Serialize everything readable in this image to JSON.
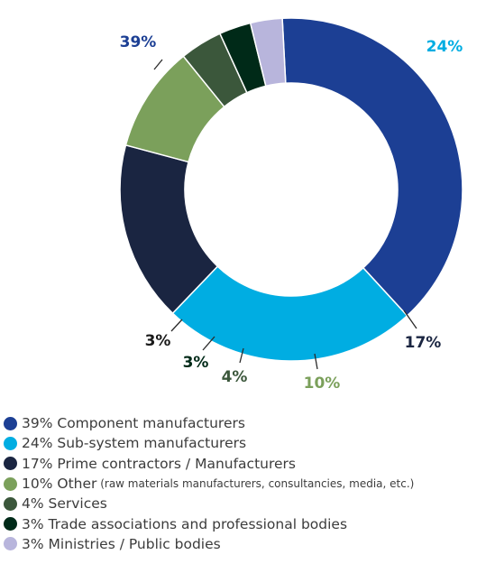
{
  "chart_data": {
    "type": "pie",
    "title": "",
    "slices": [
      {
        "value": 39,
        "label": "39%",
        "color": "#1c3f94",
        "legend": "39% Component manufacturers",
        "note": ""
      },
      {
        "value": 24,
        "label": "24%",
        "color": "#00ade2",
        "legend": "24% Sub-system manufacturers",
        "note": ""
      },
      {
        "value": 17,
        "label": "17%",
        "color": "#1a2541",
        "legend": "17% Prime contractors / Manufacturers",
        "note": ""
      },
      {
        "value": 10,
        "label": "10%",
        "color": "#7ba05b",
        "legend": "10% Other",
        "note": "(raw materials manufacturers, consultancies, media, etc.)"
      },
      {
        "value": 4,
        "label": "4%",
        "color": "#3b573b",
        "legend": "4% Services",
        "note": ""
      },
      {
        "value": 3,
        "label": "3%",
        "color": "#002a18",
        "legend": "3% Trade associations and professional bodies",
        "note": ""
      },
      {
        "value": 3,
        "label": "3%",
        "color": "#b8b5dc",
        "legend": "3% Ministries / Public bodies",
        "note": ""
      }
    ],
    "legend_position": "bottom-left"
  }
}
